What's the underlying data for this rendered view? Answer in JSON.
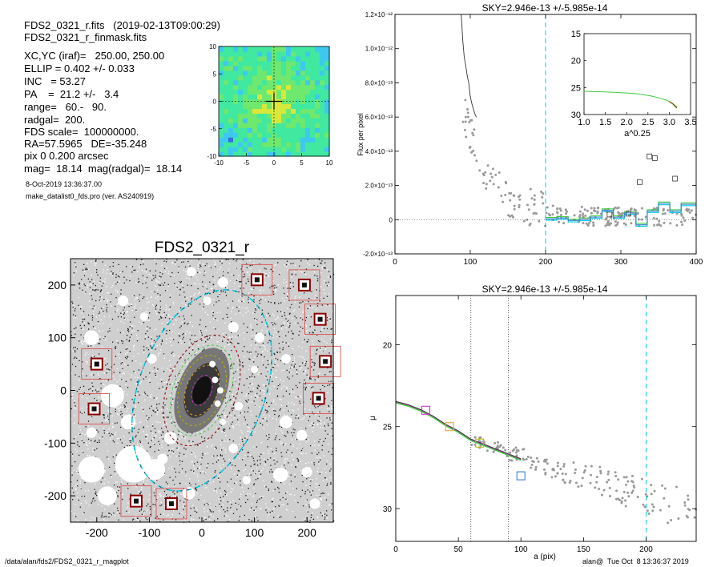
{
  "header": {
    "lines": [
      "FDS2_0321_r.fits   (2019-02-13T09:00:29)",
      "FDS2_0321_r_finmask.fits",
      "",
      "XC,YC (iraf)=   250.00, 250.00",
      "ELLIP = 0.402 +/- 0.033",
      "INC   = 53.27",
      "PA    =  21.2 +/-   3.4",
      "range=   60.-   90.",
      "radgal=  200.",
      "FDS scale=  100000000.",
      "RA=57.5965   DE=-35.248",
      "pix 0 0.200 arcsec",
      "mag=  18.14  mag(radgal)=  18.14"
    ],
    "date_line": "8-Oct-2019 13:36:37.00",
    "program_line": "make_datalist0_fds.pro (ver. AS240919)"
  },
  "footer": {
    "path": "/data/alan/fds2/FDS2_0321_r_magplot",
    "signature": "alan@  Tue Oct  8 13:36:37 2019"
  },
  "colors": {
    "cyan": "#00c8e6",
    "green": "#3ecb3e",
    "magenta": "#cc33cc",
    "orange": "#f0a030",
    "blue": "#3a7fd6",
    "gray": "#9a9a9a",
    "darkred": "#8b0000",
    "red": "#e04040",
    "olive": "#b8b800"
  },
  "chart_data": [
    {
      "type": "heatmap",
      "name": "center-map",
      "xlim": [
        -10,
        10
      ],
      "ylim": [
        -10,
        10
      ],
      "xticks": [
        "-10",
        "-5",
        "0",
        "5",
        "10"
      ],
      "yticks": [
        "-10",
        "-5",
        "0",
        "5",
        "10"
      ],
      "colormap": [
        "#1a1aa8",
        "#2f6fe6",
        "#3ec8f0",
        "#40e8a0",
        "#6ee86e",
        "#d8e83a"
      ]
    },
    {
      "type": "scatter",
      "name": "sky-plot",
      "title": "SKY=2.946e-13 +/-5.985e-14",
      "ylabel": "Flux per pixel",
      "xlim": [
        0,
        400
      ],
      "ylim": [
        -2e-13,
        1.2e-12
      ],
      "xticks": [
        "0",
        "100",
        "200",
        "300",
        "400"
      ],
      "yticks": [
        "-2.0×10⁻¹³",
        "0",
        "2.0×10⁻¹³",
        "4.0×10⁻¹³",
        "6.0×10⁻¹³",
        "8.0×10⁻¹³",
        "1.0×10⁻¹²",
        "1.2×10⁻¹²"
      ],
      "ytick_values": [
        -2e-13,
        0,
        2e-13,
        4e-13,
        6e-13,
        8e-13,
        1e-12,
        1.2e-12
      ],
      "radgal_line": 200,
      "profile_x": [
        88,
        90,
        92,
        94,
        96,
        98,
        100,
        102,
        104,
        106,
        108
      ],
      "profile_y": [
        1.2e-12,
        1.05e-12,
        9.5e-13,
        9e-13,
        8.4e-13,
        8e-13,
        7.2e-13,
        6.8e-13,
        6.5e-13,
        6.2e-13,
        6e-13
      ],
      "sky_squares": [
        {
          "x": 285,
          "y": 3e-14
        },
        {
          "x": 310,
          "y": 3.5e-14
        },
        {
          "x": 325,
          "y": 2.2e-13
        },
        {
          "x": 338,
          "y": 3.7e-13
        },
        {
          "x": 345,
          "y": 3.6e-13
        },
        {
          "x": 372,
          "y": 2.4e-13
        }
      ],
      "inset": {
        "xlabel": "a^0.25",
        "xlim": [
          1.0,
          3.5
        ],
        "ylim": [
          30,
          15
        ],
        "xticks": [
          "1.0",
          "1.5",
          "2.0",
          "2.5",
          "3.0",
          "3.5"
        ],
        "yticks": [
          "15",
          "20",
          "25",
          "30"
        ],
        "curve_x": [
          1.0,
          1.5,
          2.0,
          2.3,
          2.6,
          2.8,
          2.95,
          3.05,
          3.12,
          3.18
        ],
        "curve_y": [
          25.7,
          25.8,
          26.0,
          26.2,
          26.6,
          27.0,
          27.4,
          27.8,
          28.2,
          28.6
        ]
      }
    },
    {
      "type": "scatter",
      "name": "galaxy-image",
      "title": "FDS2_0321_r",
      "xlim": [
        -250,
        250
      ],
      "ylim": [
        -250,
        250
      ],
      "xticks": [
        "-200",
        "-100",
        "0",
        "100",
        "200"
      ],
      "yticks": [
        "-200",
        "-100",
        "0",
        "100",
        "200"
      ],
      "ellipse_pa": 21.2,
      "ellipse_ellip": 0.402,
      "isophote_semimajor": [
        30,
        50,
        70,
        90,
        110,
        200
      ],
      "masked_stars": [
        {
          "x": 105,
          "y": 210
        },
        {
          "x": 195,
          "y": 200
        },
        {
          "x": 225,
          "y": 135
        },
        {
          "x": 235,
          "y": 55
        },
        {
          "x": 222,
          "y": -15
        },
        {
          "x": -200,
          "y": 50
        },
        {
          "x": -205,
          "y": -35
        },
        {
          "x": -125,
          "y": -210
        },
        {
          "x": -58,
          "y": -215
        }
      ]
    },
    {
      "type": "line",
      "name": "mu-profile",
      "title": "SKY=2.946e-13 +/-5.985e-14",
      "xlabel": "a (pix)",
      "ylabel": "μ",
      "xlim": [
        0,
        240
      ],
      "ylim": [
        32,
        17
      ],
      "xticks": [
        "0",
        "50",
        "100",
        "150",
        "200"
      ],
      "yticks": [
        "20",
        "25",
        "30"
      ],
      "range_lines": [
        60,
        90
      ],
      "radgal_line": 200,
      "profile_x": [
        0,
        10,
        20,
        30,
        40,
        50,
        60,
        70,
        80,
        90,
        100
      ],
      "profile_y": [
        23.5,
        23.7,
        24.0,
        24.4,
        24.9,
        25.3,
        25.8,
        26.1,
        26.4,
        26.7,
        27.0
      ],
      "squares": [
        {
          "x": 24,
          "y": 24.0,
          "color": "magenta"
        },
        {
          "x": 43,
          "y": 25.0,
          "color": "orange"
        },
        {
          "x": 67,
          "y": 26.0,
          "color": "olive"
        },
        {
          "x": 100,
          "y": 28.0,
          "color": "blue"
        }
      ]
    }
  ]
}
